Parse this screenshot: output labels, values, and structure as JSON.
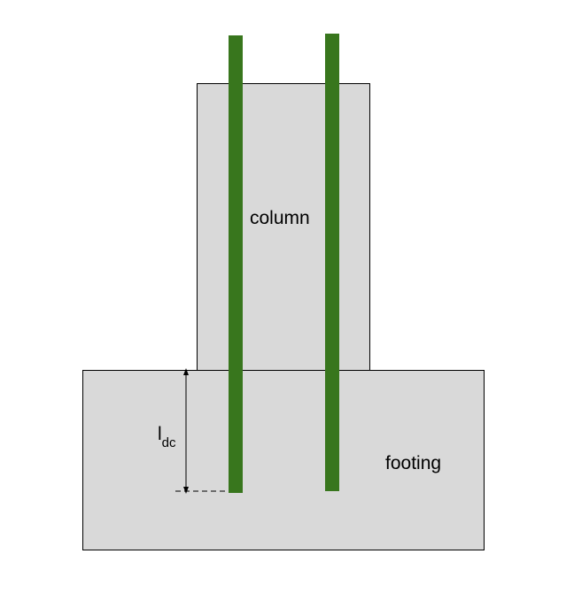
{
  "labels": {
    "column": "column",
    "footing": "footing",
    "dimension_main": "l",
    "dimension_sub": "dc"
  },
  "colors": {
    "concrete_fill": "#d9d9d9",
    "concrete_stroke": "#000000",
    "rebar": "#38761d",
    "dimension_line": "#000000",
    "background": "#ffffff"
  }
}
